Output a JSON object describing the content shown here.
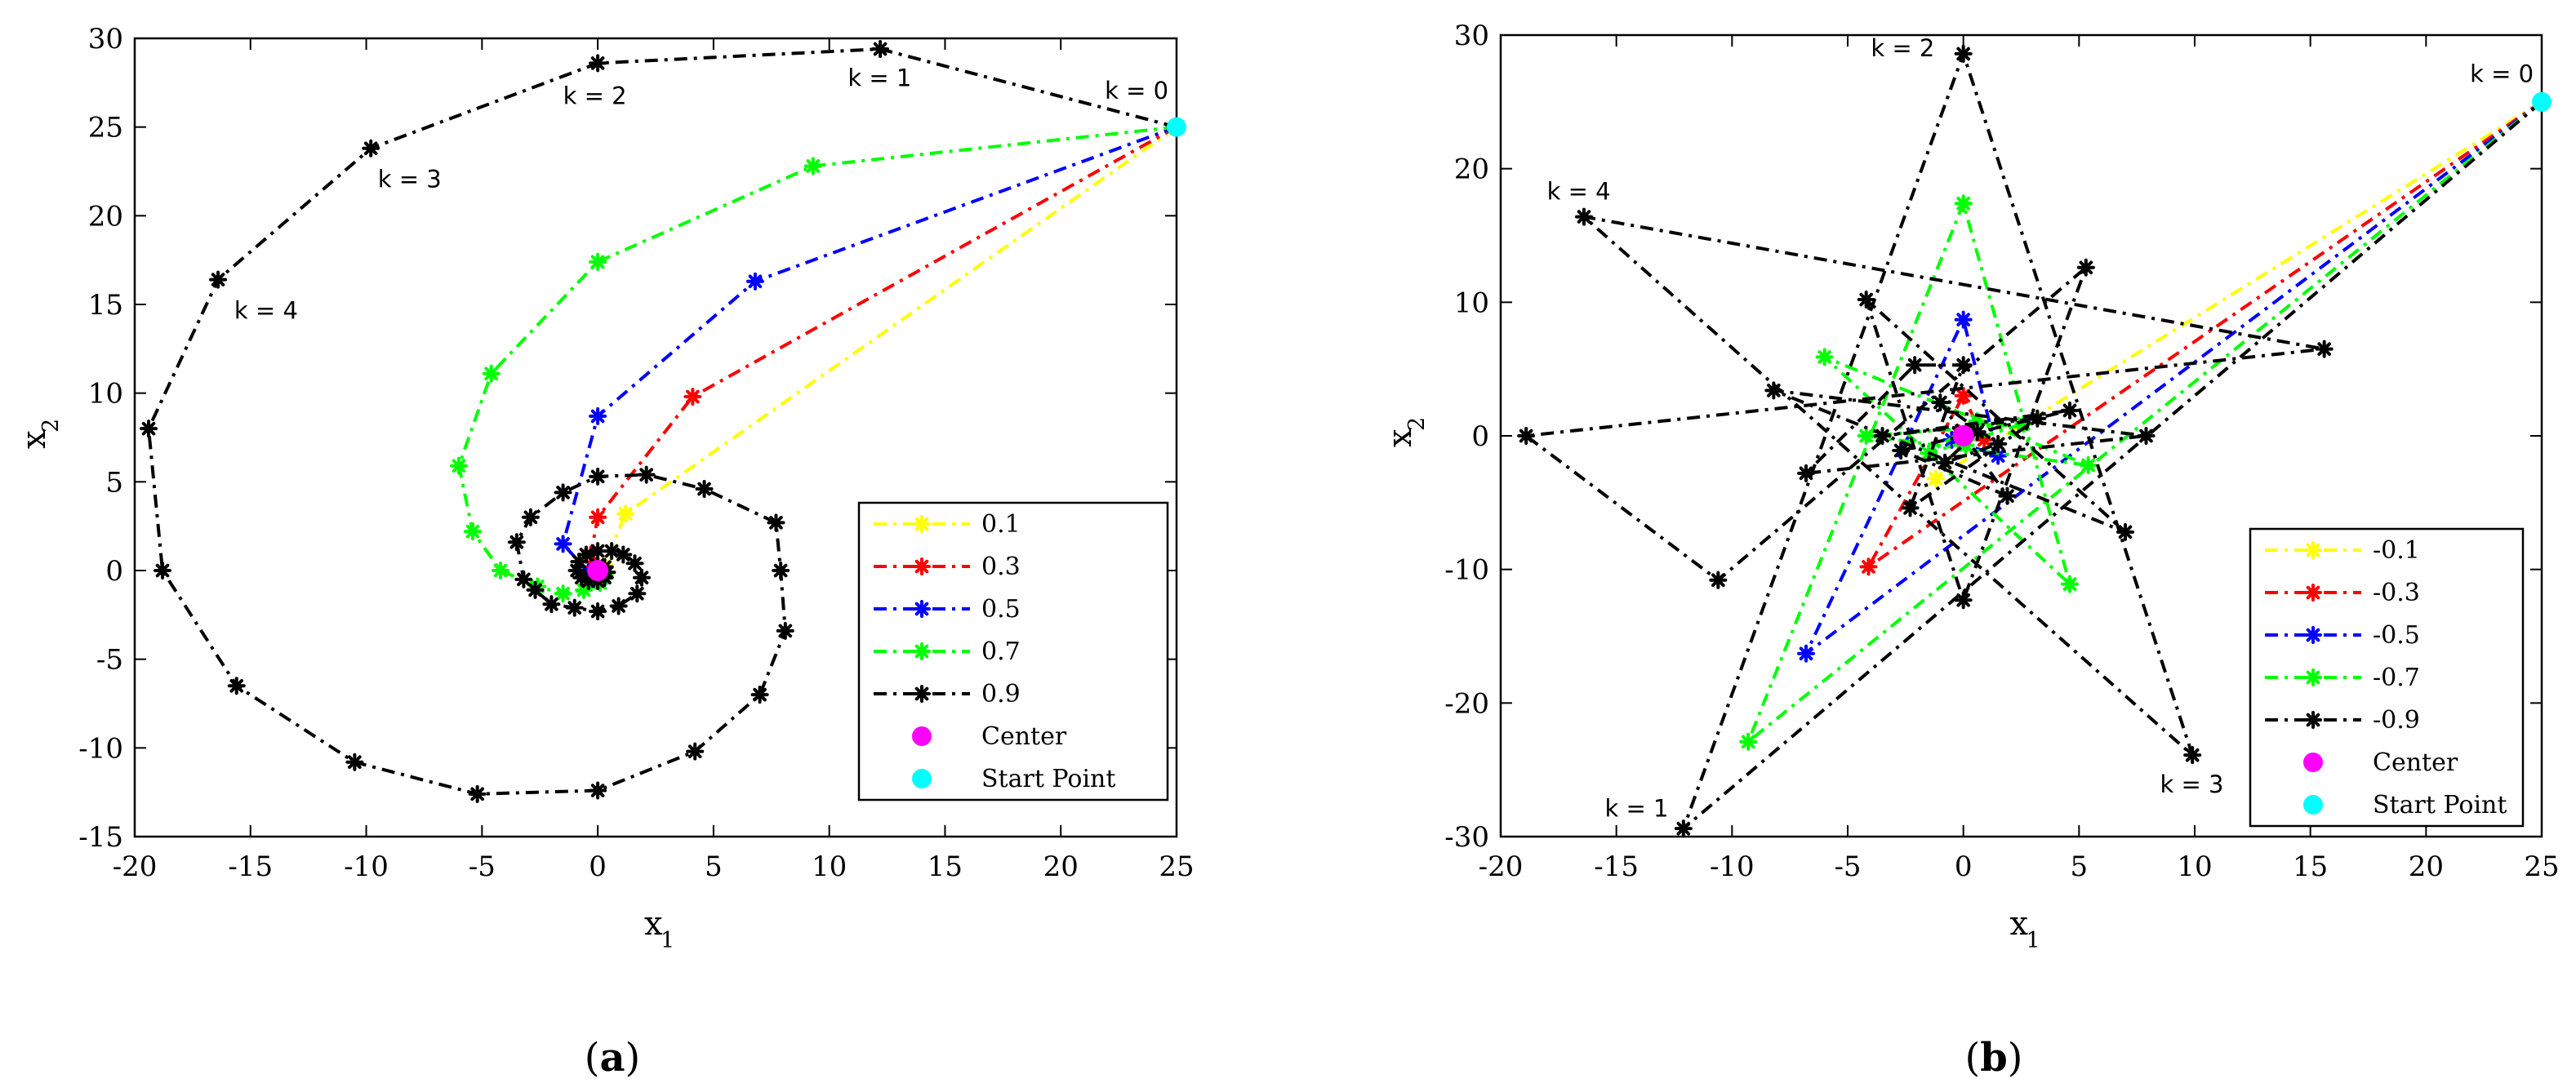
{
  "chart_data": [
    {
      "type": "line",
      "caption": "a",
      "xlabel": "x",
      "xlabel_sub": "1",
      "ylabel": "x",
      "ylabel_sub": "2",
      "xlim": [
        -20,
        25
      ],
      "ylim": [
        -15,
        30
      ],
      "xticks": [
        -20,
        -15,
        -10,
        -5,
        0,
        5,
        10,
        15,
        20,
        25
      ],
      "yticks": [
        -15,
        -10,
        -5,
        0,
        5,
        10,
        15,
        20,
        25,
        30
      ],
      "grid": false,
      "legend_position": "bottom-right",
      "series": [
        {
          "name": "0.1",
          "color": "#ffff00",
          "points": [
            [
              25,
              25
            ],
            [
              1.2,
              3.2
            ],
            [
              0.3,
              0.3
            ],
            [
              0,
              0
            ]
          ]
        },
        {
          "name": "0.3",
          "color": "#ff0000",
          "points": [
            [
              25,
              25
            ],
            [
              4.1,
              9.8
            ],
            [
              0,
              3
            ],
            [
              -0.3,
              0.9
            ],
            [
              -0.2,
              0.2
            ],
            [
              0,
              0
            ]
          ]
        },
        {
          "name": "0.5",
          "color": "#0000ff",
          "points": [
            [
              25,
              25
            ],
            [
              6.8,
              16.3
            ],
            [
              0,
              8.7
            ],
            [
              -1.5,
              1.5
            ],
            [
              -0.4,
              -0.1
            ],
            [
              0.2,
              -0.2
            ],
            [
              0,
              0
            ]
          ]
        },
        {
          "name": "0.7",
          "color": "#00ff00",
          "points": [
            [
              25,
              25
            ],
            [
              9.3,
              22.8
            ],
            [
              0,
              17.4
            ],
            [
              -4.6,
              11.1
            ],
            [
              -6,
              5.9
            ],
            [
              -5.4,
              2.2
            ],
            [
              -4.2,
              0
            ],
            [
              -2.6,
              -0.9
            ],
            [
              -1.5,
              -1.3
            ],
            [
              -0.6,
              -1.1
            ],
            [
              0.1,
              -0.7
            ],
            [
              0.3,
              -0.2
            ],
            [
              0,
              0
            ]
          ]
        },
        {
          "name": "0.9",
          "color": "#000000",
          "points": [
            [
              25,
              25
            ],
            [
              12.2,
              29.4
            ],
            [
              0,
              28.6
            ],
            [
              -9.8,
              23.8
            ],
            [
              -16.4,
              16.4
            ],
            [
              -19.4,
              8
            ],
            [
              -18.8,
              0
            ],
            [
              -15.6,
              -6.5
            ],
            [
              -10.5,
              -10.8
            ],
            [
              -5.2,
              -12.6
            ],
            [
              0,
              -12.4
            ],
            [
              4.2,
              -10.2
            ],
            [
              7,
              -7
            ],
            [
              8.1,
              -3.4
            ],
            [
              7.9,
              0
            ],
            [
              7.7,
              2.7
            ],
            [
              4.6,
              4.6
            ],
            [
              2.1,
              5.4
            ],
            [
              0,
              5.3
            ],
            [
              -1.5,
              4.4
            ],
            [
              -2.9,
              3
            ],
            [
              -3.5,
              1.6
            ],
            [
              -3.2,
              -0.5
            ],
            [
              -2.7,
              -1.1
            ],
            [
              -2,
              -1.9
            ],
            [
              -1,
              -2.1
            ],
            [
              0,
              -2.3
            ],
            [
              0.9,
              -2
            ],
            [
              1.7,
              -1.3
            ],
            [
              1.9,
              -0.4
            ],
            [
              1.6,
              0.4
            ],
            [
              1.1,
              0.9
            ],
            [
              0.6,
              1.1
            ],
            [
              0,
              1.1
            ],
            [
              -0.5,
              0.9
            ],
            [
              -0.8,
              0.5
            ],
            [
              -0.9,
              0
            ],
            [
              -0.7,
              -0.4
            ],
            [
              -0.4,
              -0.6
            ],
            [
              0,
              -0.6
            ],
            [
              0.3,
              -0.4
            ],
            [
              0.4,
              -0.1
            ],
            [
              0.3,
              0.2
            ],
            [
              0,
              0.3
            ],
            [
              0,
              0
            ]
          ]
        }
      ],
      "center": {
        "name": "Center",
        "color": "#ff00ff",
        "point": [
          0,
          0
        ]
      },
      "start": {
        "name": "Start Point",
        "color": "#00ffff",
        "point": [
          25,
          25
        ]
      },
      "annotations": [
        {
          "text": "k = 0",
          "x": 21.9,
          "y": 26.6
        },
        {
          "text": "k = 1",
          "x": 10.8,
          "y": 27.3
        },
        {
          "text": "k = 2",
          "x": -1.5,
          "y": 26.3
        },
        {
          "text": "k = 3",
          "x": -9.5,
          "y": 21.6
        },
        {
          "text": "k = 4",
          "x": -15.7,
          "y": 14.2
        }
      ]
    },
    {
      "type": "line",
      "caption": "b",
      "xlabel": "x",
      "xlabel_sub": "1",
      "ylabel": "x",
      "ylabel_sub": "2",
      "xlim": [
        -20,
        25
      ],
      "ylim": [
        -30,
        30
      ],
      "xticks": [
        -20,
        -15,
        -10,
        -5,
        0,
        5,
        10,
        15,
        20,
        25
      ],
      "yticks": [
        -30,
        -20,
        -10,
        0,
        10,
        20,
        30
      ],
      "grid": false,
      "legend_position": "bottom-right",
      "series": [
        {
          "name": "-0.1",
          "color": "#ffff00",
          "points": [
            [
              25,
              25
            ],
            [
              -1.2,
              -3.2
            ],
            [
              0.3,
              0.3
            ],
            [
              0,
              0
            ]
          ]
        },
        {
          "name": "-0.3",
          "color": "#ff0000",
          "points": [
            [
              25,
              25
            ],
            [
              -4.1,
              -9.8
            ],
            [
              0,
              3
            ],
            [
              0.9,
              -0.3
            ],
            [
              -0.2,
              0.2
            ],
            [
              0,
              0
            ]
          ]
        },
        {
          "name": "-0.5",
          "color": "#0000ff",
          "points": [
            [
              25,
              25
            ],
            [
              -6.8,
              -16.3
            ],
            [
              0,
              8.7
            ],
            [
              1.5,
              -1.5
            ],
            [
              -0.5,
              -0.3
            ],
            [
              0.2,
              0.2
            ],
            [
              0,
              0
            ]
          ]
        },
        {
          "name": "-0.7",
          "color": "#00ff00",
          "points": [
            [
              25,
              25
            ],
            [
              -9.3,
              -22.9
            ],
            [
              0,
              17.4
            ],
            [
              4.6,
              -11.1
            ],
            [
              -6,
              5.9
            ],
            [
              5.4,
              -2.2
            ],
            [
              -4.2,
              0
            ],
            [
              2.6,
              0.9
            ],
            [
              -1.5,
              -1.3
            ],
            [
              0.6,
              1.1
            ],
            [
              0.1,
              -0.7
            ],
            [
              0,
              0
            ]
          ]
        },
        {
          "name": "-0.9",
          "color": "#000000",
          "points": [
            [
              25,
              25
            ],
            [
              -12.1,
              -29.4
            ],
            [
              0,
              28.6
            ],
            [
              9.9,
              -23.9
            ],
            [
              -16.4,
              16.4
            ],
            [
              15.6,
              6.5
            ],
            [
              -18.9,
              0
            ],
            [
              -10.6,
              -10.8
            ],
            [
              5.3,
              12.6
            ],
            [
              0,
              -12.3
            ],
            [
              -4.2,
              10.2
            ],
            [
              7,
              -7.2
            ],
            [
              -8.2,
              3.4
            ],
            [
              7.9,
              0
            ],
            [
              -6.8,
              -2.8
            ],
            [
              -2.1,
              5.3
            ],
            [
              0,
              5.3
            ],
            [
              -2.3,
              -5.4
            ],
            [
              3.2,
              1.3
            ],
            [
              -3.5,
              0
            ],
            [
              4.6,
              1.9
            ],
            [
              -2.7,
              -1.1
            ],
            [
              1.9,
              -4.5
            ],
            [
              -1,
              2.5
            ],
            [
              1.5,
              -0.6
            ],
            [
              -0.8,
              -2
            ],
            [
              0.6,
              0.3
            ],
            [
              0,
              0
            ]
          ]
        }
      ],
      "center": {
        "name": "Center",
        "color": "#ff00ff",
        "point": [
          0,
          0
        ]
      },
      "start": {
        "name": "Start Point",
        "color": "#00ffff",
        "point": [
          25,
          25
        ]
      },
      "annotations": [
        {
          "text": "k = 0",
          "x": 21.9,
          "y": 26.5
        },
        {
          "text": "k = 1",
          "x": -15.5,
          "y": -28.5
        },
        {
          "text": "k = 2",
          "x": -4.0,
          "y": 28.4
        },
        {
          "text": "k = 3",
          "x": 8.5,
          "y": -26.7
        },
        {
          "text": "k = 4",
          "x": -18.0,
          "y": 17.7
        }
      ]
    }
  ]
}
